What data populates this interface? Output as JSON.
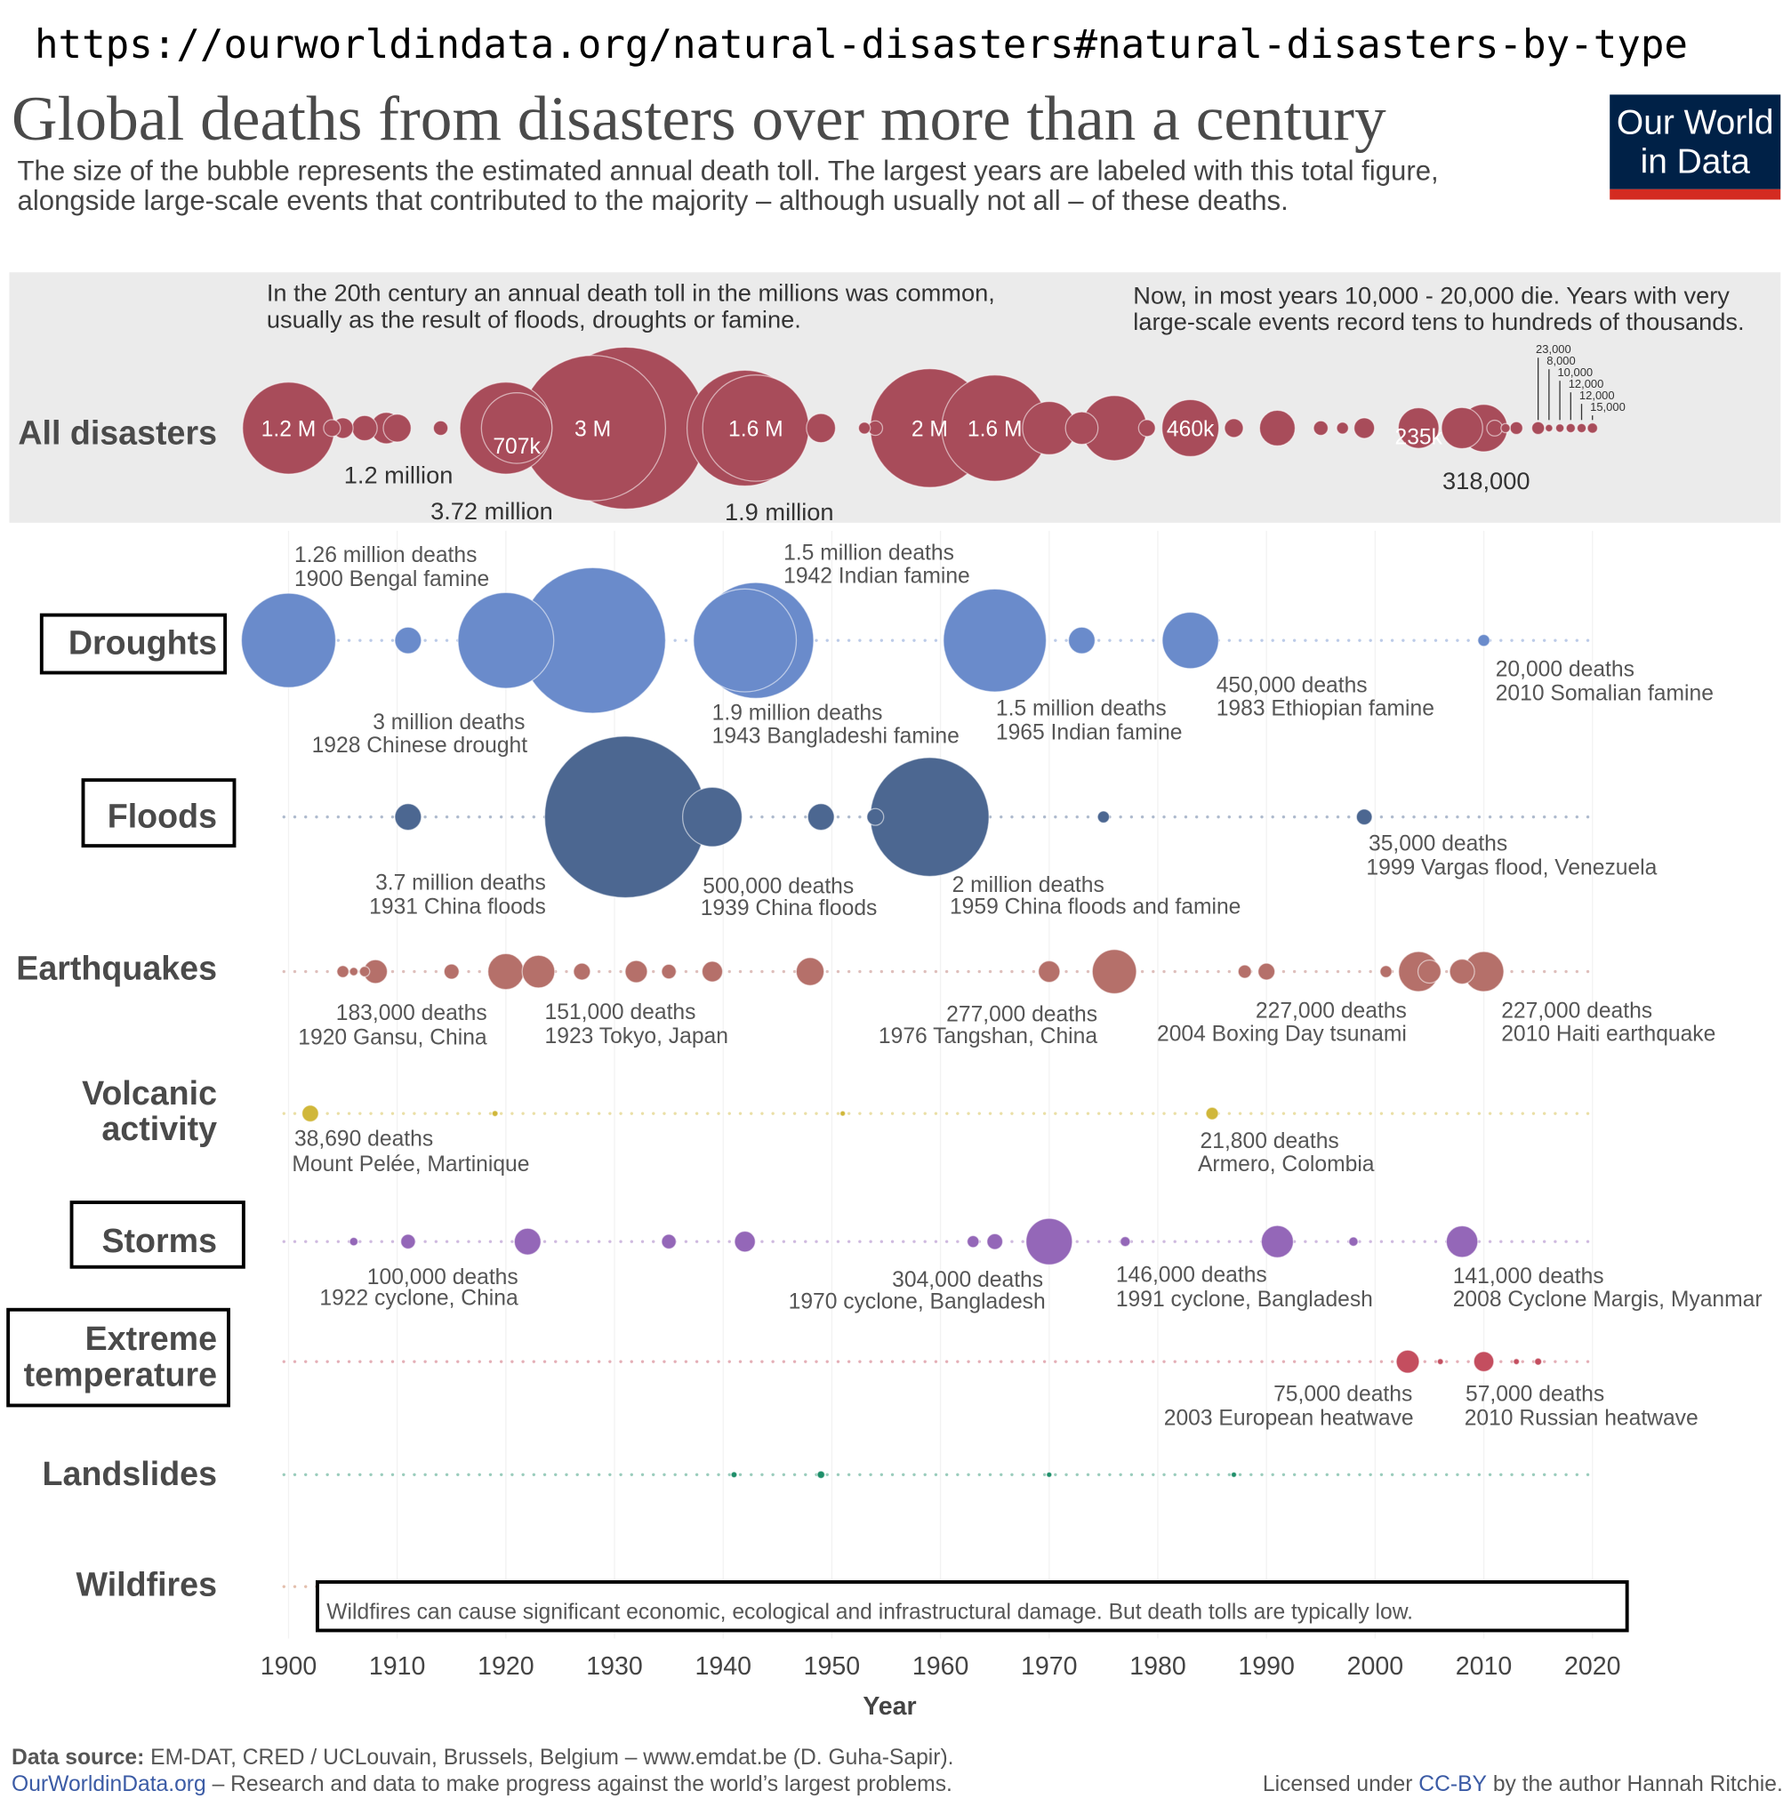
{
  "url": "https://ourworldindata.org/natural-disasters#natural-disasters-by-type",
  "title": "Global deaths from disasters over more than a century",
  "subtitle_lines": [
    "The size of the bubble represents the estimated annual death toll. The largest years are labeled with this total figure,",
    "alongside large-scale events that contributed to the majority – although usually not all – of these deaths."
  ],
  "logo": {
    "line1": "Our World",
    "line2": "in Data",
    "bg": "#002147",
    "bar": "#d42b21"
  },
  "band_notes": {
    "left": [
      "In the 20th century an annual death toll in the millions was common,",
      "usually as the result of floods, droughts or famine."
    ],
    "right": [
      "Now, in most years 10,000 - 20,000 die. Years with very",
      "large-scale events record tens to hundreds of thousands."
    ]
  },
  "chart_data": {
    "type": "bubble-timeline",
    "xlabel": "Year",
    "xlim": [
      1900,
      2020
    ],
    "xticks": [
      "1900",
      "1910",
      "1920",
      "1930",
      "1940",
      "1950",
      "1960",
      "1970",
      "1980",
      "1990",
      "2000",
      "2010",
      "2020"
    ],
    "rows": [
      {
        "id": "all",
        "label": [
          "All disasters"
        ],
        "color": "#a84c5a",
        "points": [
          {
            "year": 1900,
            "deaths": 1200000,
            "label": "1.2 M"
          },
          {
            "year": 1904,
            "deaths": 40000
          },
          {
            "year": 1905,
            "deaths": 60000
          },
          {
            "year": 1907,
            "deaths": 90000
          },
          {
            "year": 1909,
            "deaths": 140000
          },
          {
            "year": 1910,
            "deaths": 110000
          },
          {
            "year": 1914,
            "deaths": 30000
          },
          {
            "year": 1920,
            "deaths": 1200000
          },
          {
            "year": 1921,
            "deaths": 707000,
            "label": "707k"
          },
          {
            "year": 1931,
            "deaths": 3720000
          },
          {
            "year": 1928,
            "deaths": 3000000,
            "label": "3 M"
          },
          {
            "year": 1942,
            "deaths": 1900000
          },
          {
            "year": 1943,
            "deaths": 1600000,
            "label": "1.6 M"
          },
          {
            "year": 1949,
            "deaths": 120000
          },
          {
            "year": 1953,
            "deaths": 20000
          },
          {
            "year": 1954,
            "deaths": 30000
          },
          {
            "year": 1959,
            "deaths": 2000000,
            "label": "2 M"
          },
          {
            "year": 1965,
            "deaths": 1600000,
            "label": "1.6 M"
          },
          {
            "year": 1970,
            "deaths": 400000
          },
          {
            "year": 1973,
            "deaths": 150000
          },
          {
            "year": 1976,
            "deaths": 600000
          },
          {
            "year": 1979,
            "deaths": 40000
          },
          {
            "year": 1983,
            "deaths": 460000,
            "label": "460k"
          },
          {
            "year": 1987,
            "deaths": 50000
          },
          {
            "year": 1991,
            "deaths": 180000
          },
          {
            "year": 1995,
            "deaths": 30000
          },
          {
            "year": 1997,
            "deaths": 20000
          },
          {
            "year": 1999,
            "deaths": 60000
          },
          {
            "year": 2004,
            "deaths": 235000,
            "label": "235k"
          },
          {
            "year": 2008,
            "deaths": 240000
          },
          {
            "year": 2010,
            "deaths": 318000
          },
          {
            "year": 2011,
            "deaths": 35000
          },
          {
            "year": 2012,
            "deaths": 12000
          },
          {
            "year": 2013,
            "deaths": 23000
          },
          {
            "year": 2015,
            "deaths": 23000
          },
          {
            "year": 2016,
            "deaths": 8000
          },
          {
            "year": 2017,
            "deaths": 10000
          },
          {
            "year": 2018,
            "deaths": 12000
          },
          {
            "year": 2019,
            "deaths": 12000
          },
          {
            "year": 2020,
            "deaths": 15000
          }
        ]
      },
      {
        "id": "droughts",
        "label": [
          "Droughts"
        ],
        "color": "#6a8bcb",
        "points": [
          {
            "year": 1900,
            "deaths": 1260000
          },
          {
            "year": 1911,
            "deaths": 100000
          },
          {
            "year": 1920,
            "deaths": 1300000
          },
          {
            "year": 1928,
            "deaths": 3000000
          },
          {
            "year": 1942,
            "deaths": 1500000
          },
          {
            "year": 1943,
            "deaths": 1900000
          },
          {
            "year": 1965,
            "deaths": 1500000
          },
          {
            "year": 1973,
            "deaths": 100000
          },
          {
            "year": 1983,
            "deaths": 450000
          },
          {
            "year": 2010,
            "deaths": 20000
          }
        ]
      },
      {
        "id": "floods",
        "label": [
          "Floods"
        ],
        "color": "#4c6791",
        "points": [
          {
            "year": 1911,
            "deaths": 100000
          },
          {
            "year": 1931,
            "deaths": 3700000
          },
          {
            "year": 1939,
            "deaths": 500000
          },
          {
            "year": 1949,
            "deaths": 100000
          },
          {
            "year": 1954,
            "deaths": 40000
          },
          {
            "year": 1959,
            "deaths": 2000000
          },
          {
            "year": 1975,
            "deaths": 20000
          },
          {
            "year": 1999,
            "deaths": 35000
          }
        ]
      },
      {
        "id": "earthquakes",
        "label": [
          "Earthquakes"
        ],
        "color": "#b5706a",
        "points": [
          {
            "year": 1905,
            "deaths": 20000
          },
          {
            "year": 1906,
            "deaths": 10000
          },
          {
            "year": 1907,
            "deaths": 15000
          },
          {
            "year": 1908,
            "deaths": 80000
          },
          {
            "year": 1915,
            "deaths": 32000
          },
          {
            "year": 1920,
            "deaths": 183000
          },
          {
            "year": 1923,
            "deaths": 151000
          },
          {
            "year": 1927,
            "deaths": 40000
          },
          {
            "year": 1932,
            "deaths": 70000
          },
          {
            "year": 1935,
            "deaths": 30000
          },
          {
            "year": 1939,
            "deaths": 60000
          },
          {
            "year": 1948,
            "deaths": 110000
          },
          {
            "year": 1970,
            "deaths": 66000
          },
          {
            "year": 1976,
            "deaths": 277000
          },
          {
            "year": 1988,
            "deaths": 25000
          },
          {
            "year": 1990,
            "deaths": 40000
          },
          {
            "year": 2001,
            "deaths": 20000
          },
          {
            "year": 2004,
            "deaths": 227000
          },
          {
            "year": 2005,
            "deaths": 75000
          },
          {
            "year": 2008,
            "deaths": 88000
          },
          {
            "year": 2010,
            "deaths": 227000
          }
        ]
      },
      {
        "id": "volcanic",
        "label": [
          "Volcanic",
          "activity"
        ],
        "color": "#d0b73a",
        "points": [
          {
            "year": 1902,
            "deaths": 38690
          },
          {
            "year": 1985,
            "deaths": 21800
          },
          {
            "year": 1919,
            "deaths": 5000
          },
          {
            "year": 1951,
            "deaths": 3000
          }
        ]
      },
      {
        "id": "storms",
        "label": [
          "Storms"
        ],
        "color": "#9467b8",
        "points": [
          {
            "year": 1906,
            "deaths": 10000
          },
          {
            "year": 1911,
            "deaths": 30000
          },
          {
            "year": 1922,
            "deaths": 100000
          },
          {
            "year": 1935,
            "deaths": 30000
          },
          {
            "year": 1942,
            "deaths": 61000
          },
          {
            "year": 1963,
            "deaths": 20000
          },
          {
            "year": 1965,
            "deaths": 35000
          },
          {
            "year": 1970,
            "deaths": 304000
          },
          {
            "year": 1977,
            "deaths": 14000
          },
          {
            "year": 1991,
            "deaths": 146000
          },
          {
            "year": 1998,
            "deaths": 12000
          },
          {
            "year": 2008,
            "deaths": 141000
          }
        ]
      },
      {
        "id": "temperature",
        "label": [
          "Extreme",
          "temperature"
        ],
        "color": "#c44e5f",
        "points": [
          {
            "year": 2003,
            "deaths": 75000
          },
          {
            "year": 2010,
            "deaths": 57000
          },
          {
            "year": 2006,
            "deaths": 5000
          },
          {
            "year": 2013,
            "deaths": 5000
          },
          {
            "year": 2015,
            "deaths": 7000
          }
        ]
      },
      {
        "id": "landslides",
        "label": [
          "Landslides"
        ],
        "color": "#1f8f6a",
        "points": [
          {
            "year": 1941,
            "deaths": 5000
          },
          {
            "year": 1949,
            "deaths": 8000
          },
          {
            "year": 1970,
            "deaths": 3000
          },
          {
            "year": 1987,
            "deaths": 3000
          }
        ]
      },
      {
        "id": "wildfires",
        "label": [
          "Wildfires"
        ],
        "color": "#c0704a",
        "points": []
      }
    ],
    "annotations": {
      "all": [
        "1.2 million",
        "3.72 million",
        "1.9 million",
        "318,000"
      ],
      "all_small": [
        "23,000",
        "8,000",
        "10,000",
        "12,000",
        "12,000",
        "15,000"
      ],
      "droughts": [
        [
          "1.26 million deaths",
          "1900 Bengal famine"
        ],
        [
          "1.5 million deaths",
          "1942 Indian famine"
        ],
        [
          "3 million deaths",
          "1928 Chinese drought"
        ],
        [
          "1.9 million deaths",
          "1943 Bangladeshi famine"
        ],
        [
          "1.5 million deaths",
          "1965 Indian famine"
        ],
        [
          "450,000 deaths",
          "1983 Ethiopian famine"
        ],
        [
          "20,000 deaths",
          "2010 Somalian famine"
        ]
      ],
      "floods": [
        [
          "3.7 million deaths",
          "1931 China floods"
        ],
        [
          "500,000 deaths",
          "1939 China floods"
        ],
        [
          "2 million deaths",
          "1959 China floods and famine"
        ],
        [
          "35,000 deaths",
          "1999 Vargas flood, Venezuela"
        ]
      ],
      "earthquakes": [
        [
          "183,000 deaths",
          "1920 Gansu, China"
        ],
        [
          "151,000 deaths",
          "1923 Tokyo, Japan"
        ],
        [
          "277,000 deaths",
          "1976 Tangshan, China"
        ],
        [
          "227,000 deaths",
          "2004 Boxing Day tsunami"
        ],
        [
          "227,000 deaths",
          "2010 Haiti earthquake"
        ]
      ],
      "volcanic": [
        [
          "38,690 deaths",
          "Mount Pelée, Martinique"
        ],
        [
          "21,800 deaths",
          "Armero, Colombia"
        ]
      ],
      "storms": [
        [
          "100,000 deaths",
          "1922 cyclone, China"
        ],
        [
          "304,000 deaths",
          "1970 cyclone, Bangladesh"
        ],
        [
          "146,000 deaths",
          "1991 cyclone, Bangladesh"
        ],
        [
          "141,000 deaths",
          "2008 Cyclone Margis, Myanmar"
        ]
      ],
      "temperature": [
        [
          "75,000 deaths",
          "2003 European heatwave"
        ],
        [
          "57,000 deaths",
          "2010 Russian heatwave"
        ]
      ],
      "wildfires": "Wildfires can cause significant economic, ecological and infrastructural damage. But death tolls are typically low."
    }
  },
  "footer": {
    "source_label": "Data source:",
    "source": "EM-DAT, CRED / UCLouvain, Brussels, Belgium – www.emdat.be (D. Guha-Sapir).",
    "site": "OurWorldinData.org",
    "site_desc": "– Research and data to make progress against the world’s largest problems.",
    "license_pre": "Licensed under",
    "license": "CC-BY",
    "license_post": "by the author Hannah Ritchie."
  }
}
